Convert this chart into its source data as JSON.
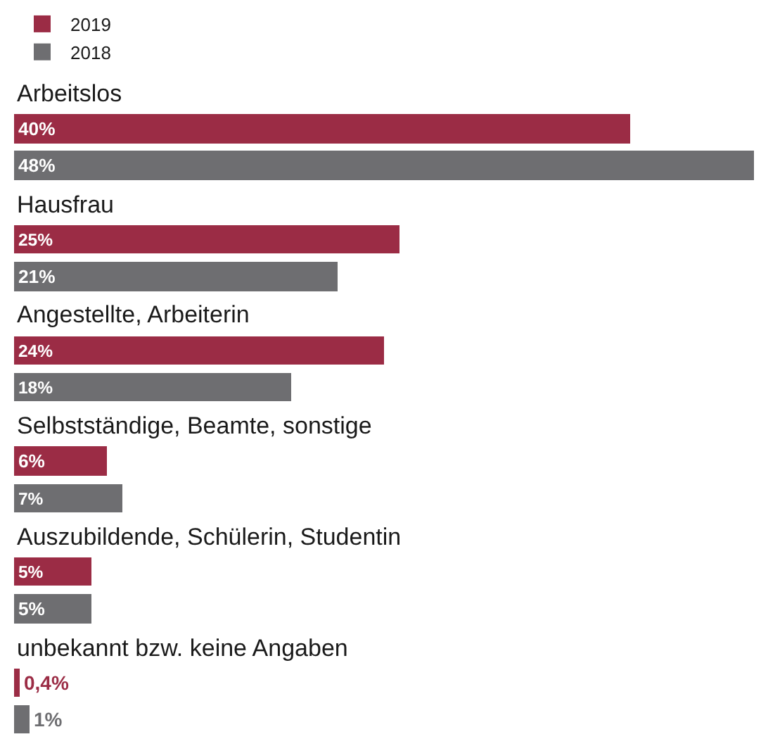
{
  "chart_data": {
    "type": "bar",
    "orientation": "horizontal",
    "categories": [
      "Arbeitslos",
      "Hausfrau",
      "Angestellte, Arbeiterin",
      "Selbstständige, Beamte, sonstige",
      "Auszubildende, Schülerin, Studentin",
      "unbekannt bzw. keine Angaben"
    ],
    "series": [
      {
        "name": "2019",
        "color": "#9b2c45",
        "values": [
          40,
          25,
          24,
          6,
          5,
          0.4
        ],
        "value_labels": [
          "40%",
          "25%",
          "24%",
          "6%",
          "5%",
          "0,4%"
        ]
      },
      {
        "name": "2018",
        "color": "#6e6e71",
        "values": [
          48,
          21,
          18,
          7,
          5,
          1
        ],
        "value_labels": [
          "48%",
          "21%",
          "18%",
          "7%",
          "5%",
          "1%"
        ]
      }
    ],
    "legend": "top left"
  }
}
